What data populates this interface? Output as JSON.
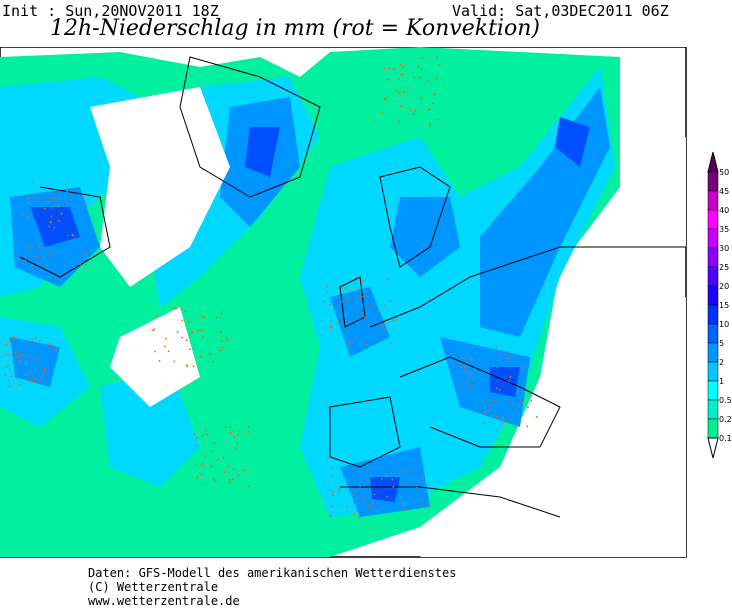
{
  "header": {
    "init": "Init : Sun,20NOV2011 18Z",
    "valid": "Valid: Sat,03DEC2011 06Z",
    "title": "12h-Niederschlag in mm (rot = Konvektion)"
  },
  "legend": {
    "levels": [
      "0.1",
      "0.2",
      "0.5",
      "1",
      "2",
      "5",
      "10",
      "15",
      "20",
      "25",
      "30",
      "35",
      "40",
      "45",
      "50"
    ],
    "colors": [
      "#00f090",
      "#00f0c8",
      "#00ffff",
      "#00c8ff",
      "#0096ff",
      "#0064ff",
      "#0032ff",
      "#1e00ff",
      "#5000ff",
      "#8c00ff",
      "#c800ff",
      "#ff00ff",
      "#c800c8",
      "#780078"
    ],
    "over_color": "#5a005a",
    "under_color": "#ffffff"
  },
  "map": {
    "colors": {
      "light": "#00f0a0",
      "cyan": "#00d8ff",
      "mid": "#0096ff",
      "dark": "#0050ff",
      "convection": "#ff6000",
      "land": "#000000",
      "frame": "#000000"
    }
  },
  "footer": {
    "line1": "Daten: GFS-Modell des amerikanischen Wetterdienstes",
    "line2": "(C) Wetterzentrale",
    "line3": "www.wetterzentrale.de"
  }
}
